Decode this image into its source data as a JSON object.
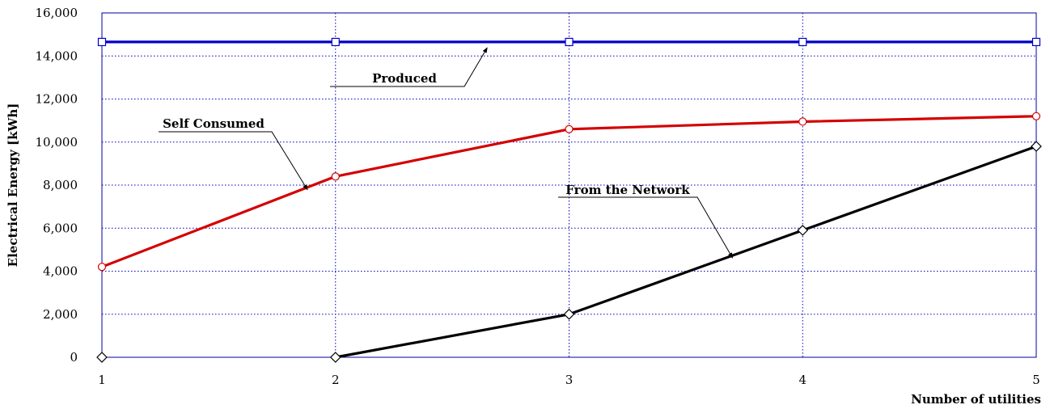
{
  "chart_data": {
    "type": "line",
    "title": "",
    "xlabel": "Number of utilities",
    "ylabel": "Electrical Energy [kWh]",
    "x": [
      1,
      2,
      3,
      4,
      5
    ],
    "xlim": [
      1,
      5
    ],
    "ylim": [
      0,
      16000
    ],
    "x_ticks": [
      "1",
      "2",
      "3",
      "4",
      "5"
    ],
    "y_ticks": [
      "0",
      "2,000",
      "4,000",
      "6,000",
      "8,000",
      "10,000",
      "12,000",
      "14,000",
      "16,000"
    ],
    "grid": true,
    "legend": "none",
    "series": [
      {
        "name": "Produced",
        "values": [
          14650,
          14650,
          14650,
          14650,
          14650
        ],
        "color": "#0000c8",
        "marker": "square"
      },
      {
        "name": "Self Consumed",
        "values": [
          4200,
          8400,
          10600,
          10950,
          11200
        ],
        "color": "#d40000",
        "marker": "circle"
      },
      {
        "name": "From the Network",
        "values": [
          0,
          0,
          2000,
          5900,
          9800
        ],
        "color": "#000000",
        "marker": "diamond"
      }
    ]
  }
}
